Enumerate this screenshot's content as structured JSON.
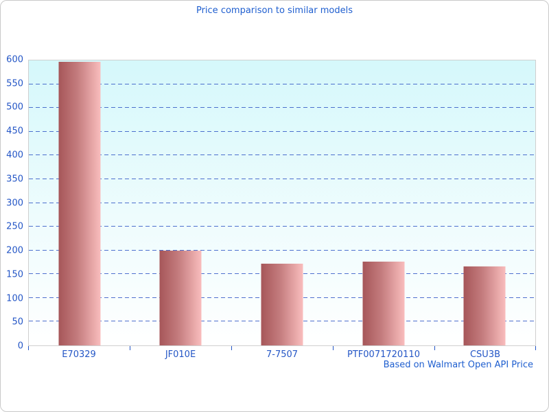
{
  "figure": {
    "title": "Price comparison to similar models",
    "caption": "Based on Walmart Open API Price"
  },
  "chart_data": {
    "type": "bar",
    "title": "Price comparison to similar models",
    "caption": "Based on Walmart Open API Price",
    "categories": [
      "E70329",
      "JF010E",
      "7-7507",
      "PTF0071720110",
      "CSU3B"
    ],
    "values": [
      597,
      199,
      172,
      177,
      166
    ],
    "xlabel": "",
    "ylabel": "",
    "ylim": [
      0,
      600
    ],
    "ytick_step": 50,
    "grid": "horizontal-dashed",
    "legend": "none",
    "colors": {
      "bar_gradient_left": "#a65659",
      "bar_gradient_right": "#f9bdbd",
      "plot_bg_top": "#d5f8fb",
      "plot_bg_bottom": "#ffffff",
      "grid_color": "#3a5fc8",
      "axis_label_color": "#2456c6",
      "title_color": "#1e5ecf",
      "border_color": "#cfcfcf"
    }
  }
}
